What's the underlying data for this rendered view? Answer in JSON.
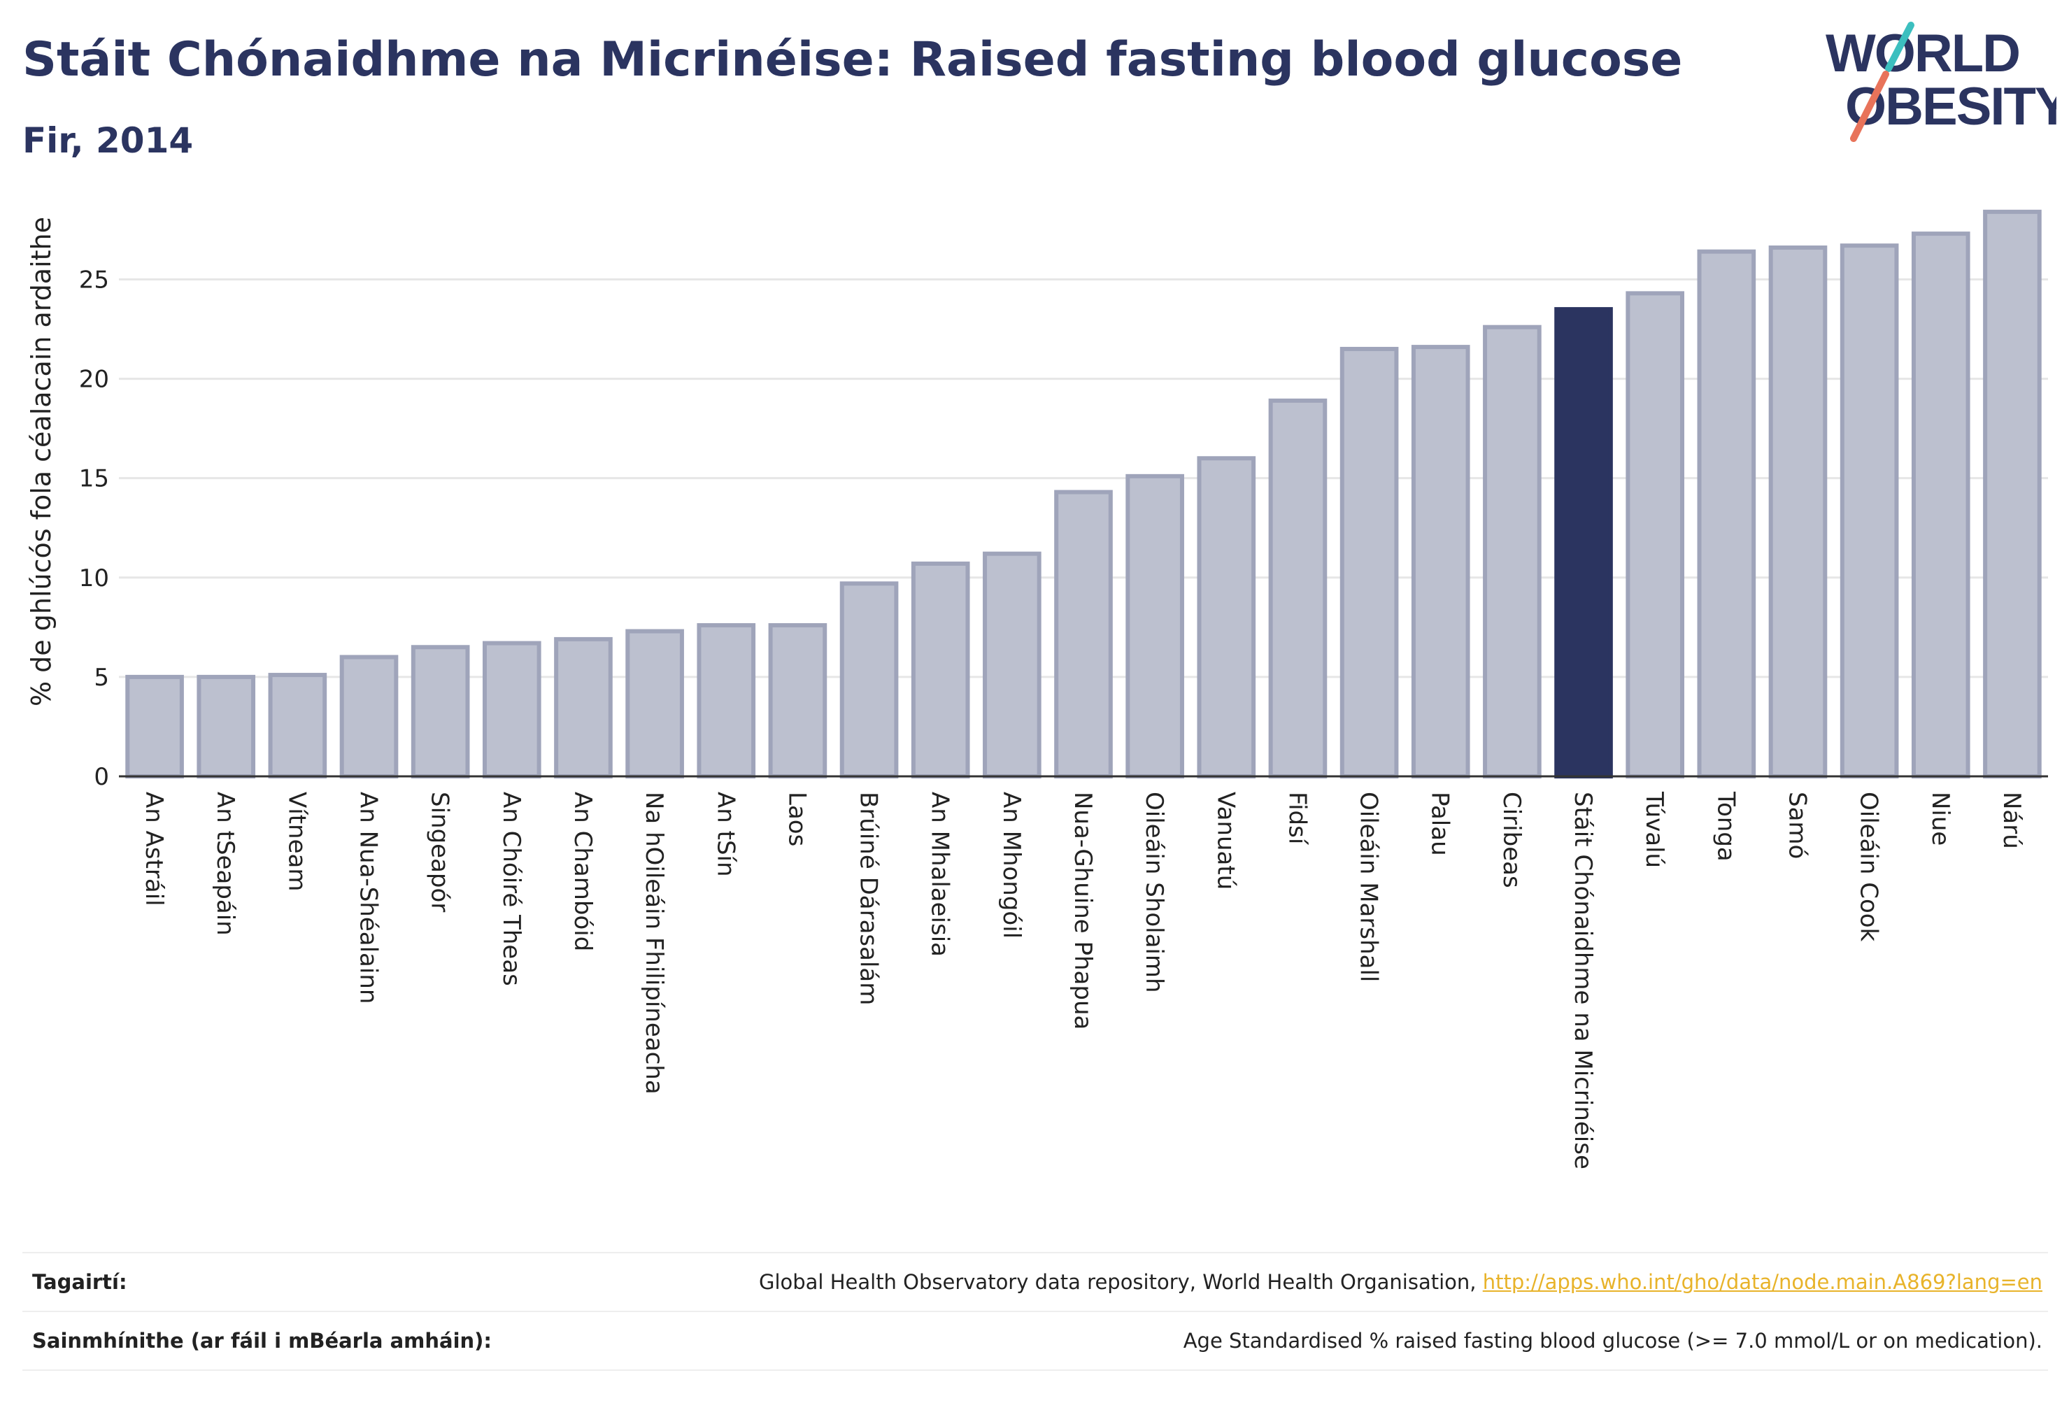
{
  "header": {
    "title": "Stáit Chónaidhme na Micrinéise: Raised fasting blood glucose",
    "subtitle": "Fir, 2014"
  },
  "logo": {
    "line1": "WORLD",
    "line2": "OBESITY",
    "colors": {
      "text": "#2b3460",
      "slash_top": "#3cbfbf",
      "slash_bottom": "#e8735a"
    }
  },
  "colors": {
    "bar": "#bcc0cf",
    "bar_border": "#9fa4ba",
    "highlight": "#2b3460",
    "grid": "#e6e6e6",
    "axis": "#333333",
    "link": "#e8b32a"
  },
  "chart_data": {
    "type": "bar",
    "ylabel": "% de ghlúcós fola céalacain ardaithe",
    "ylim": [
      0,
      28.5
    ],
    "yticks": [
      0,
      5,
      10,
      15,
      20,
      25
    ],
    "grid": true,
    "highlight": "Stáit Chónaidhme na Micrinéise",
    "categories": [
      "An Astráil",
      "An tSeapáin",
      "Vítneam",
      "An Nua-Shéalainn",
      "Singeapór",
      "An Chóiré Theas",
      "An Chambóid",
      "Na hOileáin Fhilipíneacha",
      "An tSín",
      "Laos",
      "Brúiné Dárasalám",
      "An Mhalaeisia",
      "An Mhongóil",
      "Nua-Ghuine Phapua",
      "Oileáin Sholaimh",
      "Vanuatú",
      "Fidsí",
      "Oileáin Marshall",
      "Palau",
      "Ciribeas",
      "Stáit Chónaidhme na Micrinéise",
      "Túvalú",
      "Tonga",
      "Samó",
      "Oileáin Cook",
      "Niue",
      "Nárú"
    ],
    "values": [
      5.0,
      5.0,
      5.1,
      6.0,
      6.5,
      6.7,
      6.9,
      7.3,
      7.6,
      7.6,
      9.7,
      10.7,
      11.2,
      14.3,
      15.1,
      16.0,
      18.9,
      21.5,
      21.6,
      22.6,
      23.5,
      24.3,
      26.4,
      26.6,
      26.7,
      27.3,
      28.4
    ]
  },
  "references": [
    {
      "label": "Tagairtí:",
      "text": "Global Health Observatory data repository, World Health Organisation, ",
      "link": "http://apps.who.int/gho/data/node.main.A869?lang=en"
    },
    {
      "label": "Sainmhínithe (ar fáil i mBéarla amháin):",
      "text": "Age Standardised % raised fasting blood glucose (>= 7.0 mmol/L or on medication)."
    }
  ]
}
